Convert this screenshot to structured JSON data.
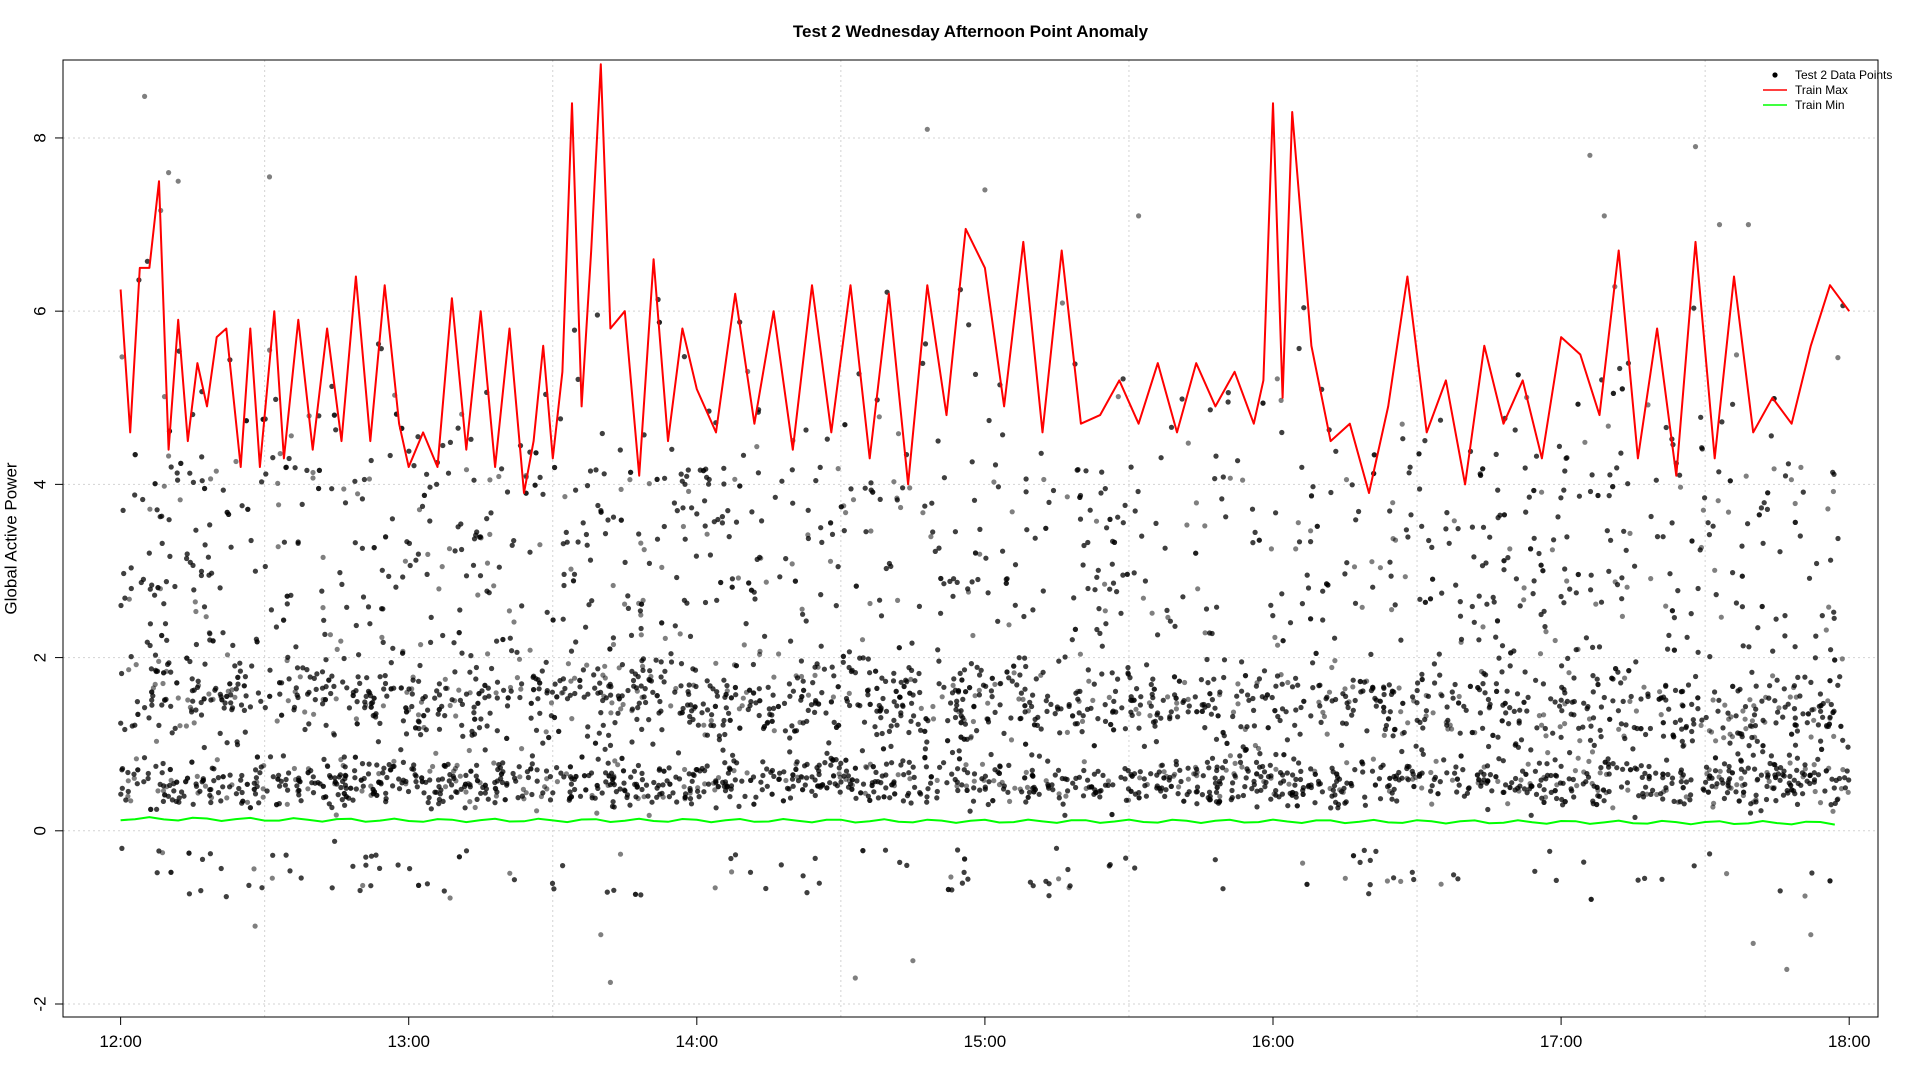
{
  "chart_data": {
    "type": "scatter",
    "title": "Test 2 Wednesday Afternoon Point Anomaly",
    "xlabel": "",
    "ylabel": "Global Active Power",
    "x_range": [
      "12:00",
      "18:00"
    ],
    "xlim_hours": [
      11.8,
      18.1
    ],
    "ylim": [
      -2.15,
      8.9
    ],
    "x_ticks": [
      "12:00",
      "13:00",
      "14:00",
      "15:00",
      "16:00",
      "17:00",
      "18:00"
    ],
    "y_ticks": [
      -2,
      0,
      2,
      4,
      6,
      8
    ],
    "grid": true,
    "legend_position": "top-right",
    "series": [
      {
        "name": "Test 2 Data Points",
        "kind": "points",
        "color": "#000000",
        "description_of_distribution": "dense cloud, 0 to 4 kW, bands near 0.6 and 1.6",
        "outliers": [
          {
            "x": "12:05",
            "y": 8.48
          },
          {
            "x": "12:10",
            "y": 7.6
          },
          {
            "x": "12:12",
            "y": 7.5
          },
          {
            "x": "12:31",
            "y": 7.55
          },
          {
            "x": "14:48",
            "y": 8.1
          },
          {
            "x": "15:00",
            "y": 7.4
          },
          {
            "x": "15:32",
            "y": 7.1
          },
          {
            "x": "17:06",
            "y": 7.8
          },
          {
            "x": "17:09",
            "y": 7.1
          },
          {
            "x": "17:28",
            "y": 7.9
          },
          {
            "x": "17:33",
            "y": 7.0
          },
          {
            "x": "17:39",
            "y": 7.0
          },
          {
            "x": "12:28",
            "y": -1.1
          },
          {
            "x": "13:40",
            "y": -1.2
          },
          {
            "x": "13:42",
            "y": -1.75
          },
          {
            "x": "14:33",
            "y": -1.7
          },
          {
            "x": "14:45",
            "y": -1.5
          },
          {
            "x": "17:47",
            "y": -1.6
          },
          {
            "x": "17:40",
            "y": -1.3
          },
          {
            "x": "17:52",
            "y": -1.2
          }
        ]
      },
      {
        "name": "Train Max",
        "kind": "line",
        "color": "#ff0000",
        "x": [
          "12:00",
          "12:02",
          "12:04",
          "12:06",
          "12:08",
          "12:10",
          "12:12",
          "12:14",
          "12:16",
          "12:18",
          "12:20",
          "12:22",
          "12:25",
          "12:27",
          "12:29",
          "12:32",
          "12:34",
          "12:37",
          "12:40",
          "12:43",
          "12:46",
          "12:49",
          "12:52",
          "12:55",
          "12:58",
          "13:00",
          "13:03",
          "13:06",
          "13:09",
          "13:12",
          "13:15",
          "13:18",
          "13:21",
          "13:24",
          "13:26",
          "13:28",
          "13:30",
          "13:32",
          "13:34",
          "13:36",
          "13:38",
          "13:40",
          "13:42",
          "13:45",
          "13:48",
          "13:51",
          "13:54",
          "13:57",
          "14:00",
          "14:04",
          "14:08",
          "14:12",
          "14:16",
          "14:20",
          "14:24",
          "14:28",
          "14:32",
          "14:36",
          "14:40",
          "14:44",
          "14:48",
          "14:52",
          "14:56",
          "15:00",
          "15:04",
          "15:08",
          "15:12",
          "15:16",
          "15:20",
          "15:24",
          "15:28",
          "15:32",
          "15:36",
          "15:40",
          "15:44",
          "15:48",
          "15:52",
          "15:56",
          "15:58",
          "16:00",
          "16:02",
          "16:04",
          "16:08",
          "16:12",
          "16:16",
          "16:20",
          "16:24",
          "16:28",
          "16:32",
          "16:36",
          "16:40",
          "16:44",
          "16:48",
          "16:52",
          "16:56",
          "17:00",
          "17:04",
          "17:08",
          "17:12",
          "17:16",
          "17:20",
          "17:24",
          "17:28",
          "17:32",
          "17:36",
          "17:40",
          "17:44",
          "17:48",
          "17:52",
          "17:56",
          "18:00"
        ],
        "y": [
          6.25,
          4.6,
          6.5,
          6.5,
          7.5,
          4.4,
          5.9,
          4.5,
          5.4,
          4.9,
          5.7,
          5.8,
          4.2,
          5.8,
          4.2,
          6.0,
          4.3,
          5.9,
          4.4,
          5.8,
          4.5,
          6.4,
          4.5,
          6.3,
          4.7,
          4.2,
          4.6,
          4.2,
          6.15,
          4.4,
          6.0,
          4.2,
          5.8,
          3.9,
          4.5,
          5.6,
          4.3,
          5.3,
          8.4,
          4.9,
          6.7,
          8.85,
          5.8,
          6.0,
          4.1,
          6.6,
          4.5,
          5.8,
          5.1,
          4.6,
          6.2,
          4.7,
          6.0,
          4.4,
          6.3,
          4.6,
          6.3,
          4.3,
          6.2,
          4.0,
          6.3,
          4.8,
          6.95,
          6.5,
          4.9,
          6.8,
          4.6,
          6.7,
          4.7,
          4.8,
          5.2,
          4.7,
          5.4,
          4.6,
          5.4,
          4.9,
          5.3,
          4.7,
          5.2,
          8.4,
          5.0,
          8.3,
          5.6,
          4.5,
          4.7,
          3.9,
          4.9,
          6.4,
          4.6,
          5.2,
          4.0,
          5.6,
          4.7,
          5.2,
          4.3,
          5.7,
          5.5,
          4.8,
          6.7,
          4.3,
          5.8,
          4.1,
          6.8,
          4.3,
          6.4,
          4.6,
          5.0,
          4.7,
          5.6,
          6.3,
          6.0
        ]
      },
      {
        "name": "Train Min",
        "kind": "line",
        "color": "#00ff00",
        "x": [
          "12:00",
          "13:00",
          "14:00",
          "15:00",
          "16:00",
          "17:00",
          "18:00"
        ],
        "y": [
          0.14,
          0.12,
          0.12,
          0.11,
          0.11,
          0.1,
          0.09
        ]
      }
    ]
  }
}
